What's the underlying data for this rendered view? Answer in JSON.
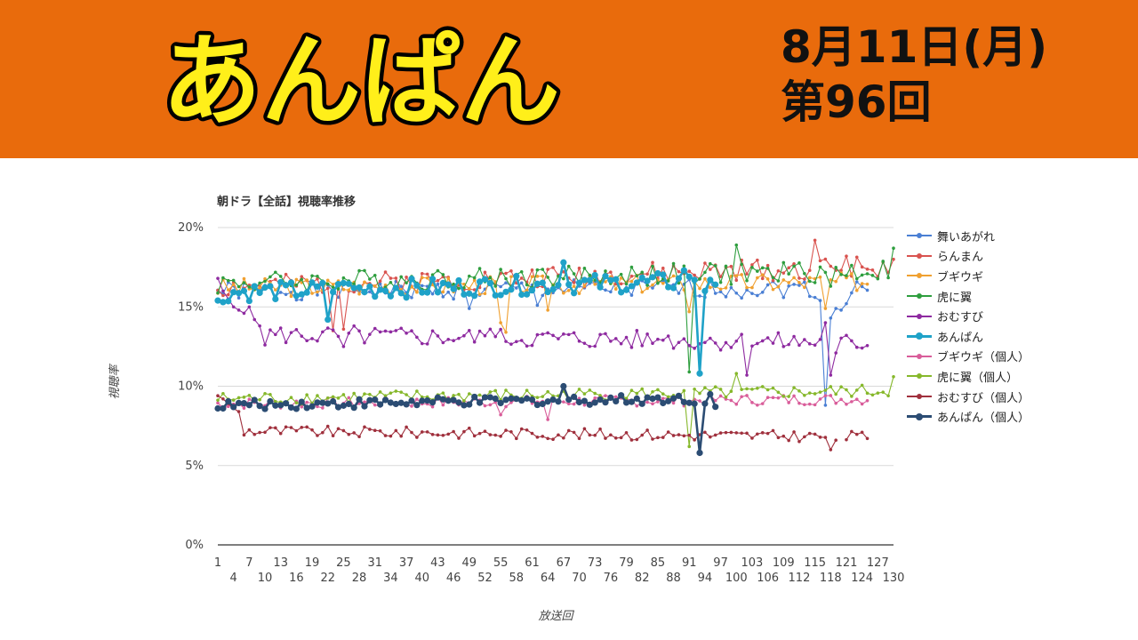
{
  "header": {
    "title": "あんぱん",
    "date": "8月11日(月)",
    "episode": "第96回",
    "background_color": "#e96b0c",
    "title_color": "#ffef1a"
  },
  "chart_data": {
    "type": "line",
    "title": "朝ドラ【全話】視聴率推移",
    "xlabel": "放送回",
    "ylabel": "視聴率",
    "ylim": [
      0,
      20
    ],
    "y_ticks": [
      "0%",
      "5%",
      "10%",
      "15%",
      "20%"
    ],
    "x_range": [
      1,
      130
    ],
    "x_tick_labels_upper": [
      "1",
      "7",
      "13",
      "19",
      "25",
      "31",
      "37",
      "43",
      "49",
      "55",
      "61",
      "67",
      "73",
      "79",
      "85",
      "91",
      "97",
      "103",
      "109",
      "115",
      "121",
      "127"
    ],
    "x_tick_labels_lower": [
      "4",
      "10",
      "16",
      "22",
      "28",
      "34",
      "40",
      "46",
      "52",
      "58",
      "64",
      "70",
      "76",
      "82",
      "88",
      "94",
      "100",
      "106",
      "112",
      "118",
      "124",
      "130"
    ],
    "legend_position": "right",
    "grid": true,
    "series": [
      {
        "name": "舞いあがれ",
        "color": "#4a7fd4",
        "base": 16.0,
        "amp": 0.6,
        "trend": 0.2,
        "count": 125,
        "seed": 1,
        "overrides": {
          "49": 14.9,
          "62": 15.1,
          "116": 15.4,
          "117": 8.8,
          "118": 14.3,
          "119": 14.9,
          "120": 14.8,
          "121": 15.2
        }
      },
      {
        "name": "らんまん",
        "color": "#d9534f",
        "base": 16.2,
        "amp": 0.7,
        "trend": 1.4,
        "count": 130,
        "seed": 2,
        "overrides": {
          "25": 13.6,
          "23": 13.5,
          "115": 19.2,
          "120": 17.3,
          "121": 18.2,
          "130": 18.0
        }
      },
      {
        "name": "ブギウギ",
        "color": "#f0a030",
        "base": 16.2,
        "amp": 0.6,
        "trend": 0.4,
        "count": 125,
        "seed": 3,
        "overrides": {
          "55": 14.0,
          "56": 13.4,
          "64": 14.8,
          "91": 14.7,
          "117": 14.9
        }
      },
      {
        "name": "虎に翼",
        "color": "#2e9e3e",
        "base": 16.5,
        "amp": 0.7,
        "trend": 0.8,
        "count": 130,
        "seed": 4,
        "overrides": {
          "91": 10.9,
          "92": 16.5,
          "100": 18.9,
          "118": 16.3,
          "130": 18.7
        }
      },
      {
        "name": "おむすび",
        "color": "#8e2aa0",
        "base": 13.3,
        "amp": 0.6,
        "trend": -0.6,
        "count": 125,
        "seed": 5,
        "overrides": {
          "1": 16.8,
          "2": 16.0,
          "3": 15.5,
          "4": 15.0,
          "5": 14.8,
          "6": 14.6,
          "7": 15.0,
          "8": 14.2,
          "9": 13.8,
          "10": 12.6,
          "25": 12.5,
          "27": 13.8,
          "53": 13.6,
          "86": 12.9,
          "102": 10.7,
          "117": 14.0,
          "118": 10.7,
          "119": 12.1
        }
      },
      {
        "name": "あんぱん",
        "color": "#1fa2c8",
        "base": 15.9,
        "amp": 0.6,
        "trend": 1.0,
        "count": 96,
        "seed": 6,
        "overrides": {
          "1": 15.4,
          "2": 15.3,
          "22": 14.2,
          "25": 16.5,
          "67": 17.8,
          "90": 17.3,
          "91": 16.9,
          "92": 16.7,
          "93": 10.8,
          "94": 16.0,
          "95": 16.7,
          "96": 16.4
        }
      },
      {
        "name": "ブギウギ（個人）",
        "color": "#d95d9a",
        "base": 8.9,
        "amp": 0.35,
        "trend": 0.3,
        "count": 125,
        "seed": 7,
        "overrides": {
          "55": 8.2,
          "64": 7.9
        }
      },
      {
        "name": "虎に翼（個人）",
        "color": "#86b82b",
        "base": 9.2,
        "amp": 0.4,
        "trend": 0.5,
        "count": 130,
        "seed": 8,
        "overrides": {
          "91": 6.2,
          "100": 10.8,
          "130": 10.6
        }
      },
      {
        "name": "おむすび（個人）",
        "color": "#a0303d",
        "base": 7.2,
        "amp": 0.35,
        "trend": -0.4,
        "count": 125,
        "seed": 9,
        "overrides": {
          "1": 9.4,
          "2": 9.2,
          "3": 8.9,
          "4": 8.6,
          "5": 8.4,
          "10": 7.1,
          "25": 7.2,
          "118": 6.0,
          "119": 6.6,
          "120": null
        }
      },
      {
        "name": "あんぱん（個人）",
        "color": "#2b4c73",
        "base": 8.8,
        "amp": 0.3,
        "trend": 0.6,
        "count": 96,
        "seed": 10,
        "overrides": {
          "1": 8.6,
          "2": 8.6,
          "67": 10.0,
          "92": 8.9,
          "93": 5.8,
          "94": 8.9,
          "95": 9.5,
          "96": 8.7
        }
      }
    ]
  }
}
